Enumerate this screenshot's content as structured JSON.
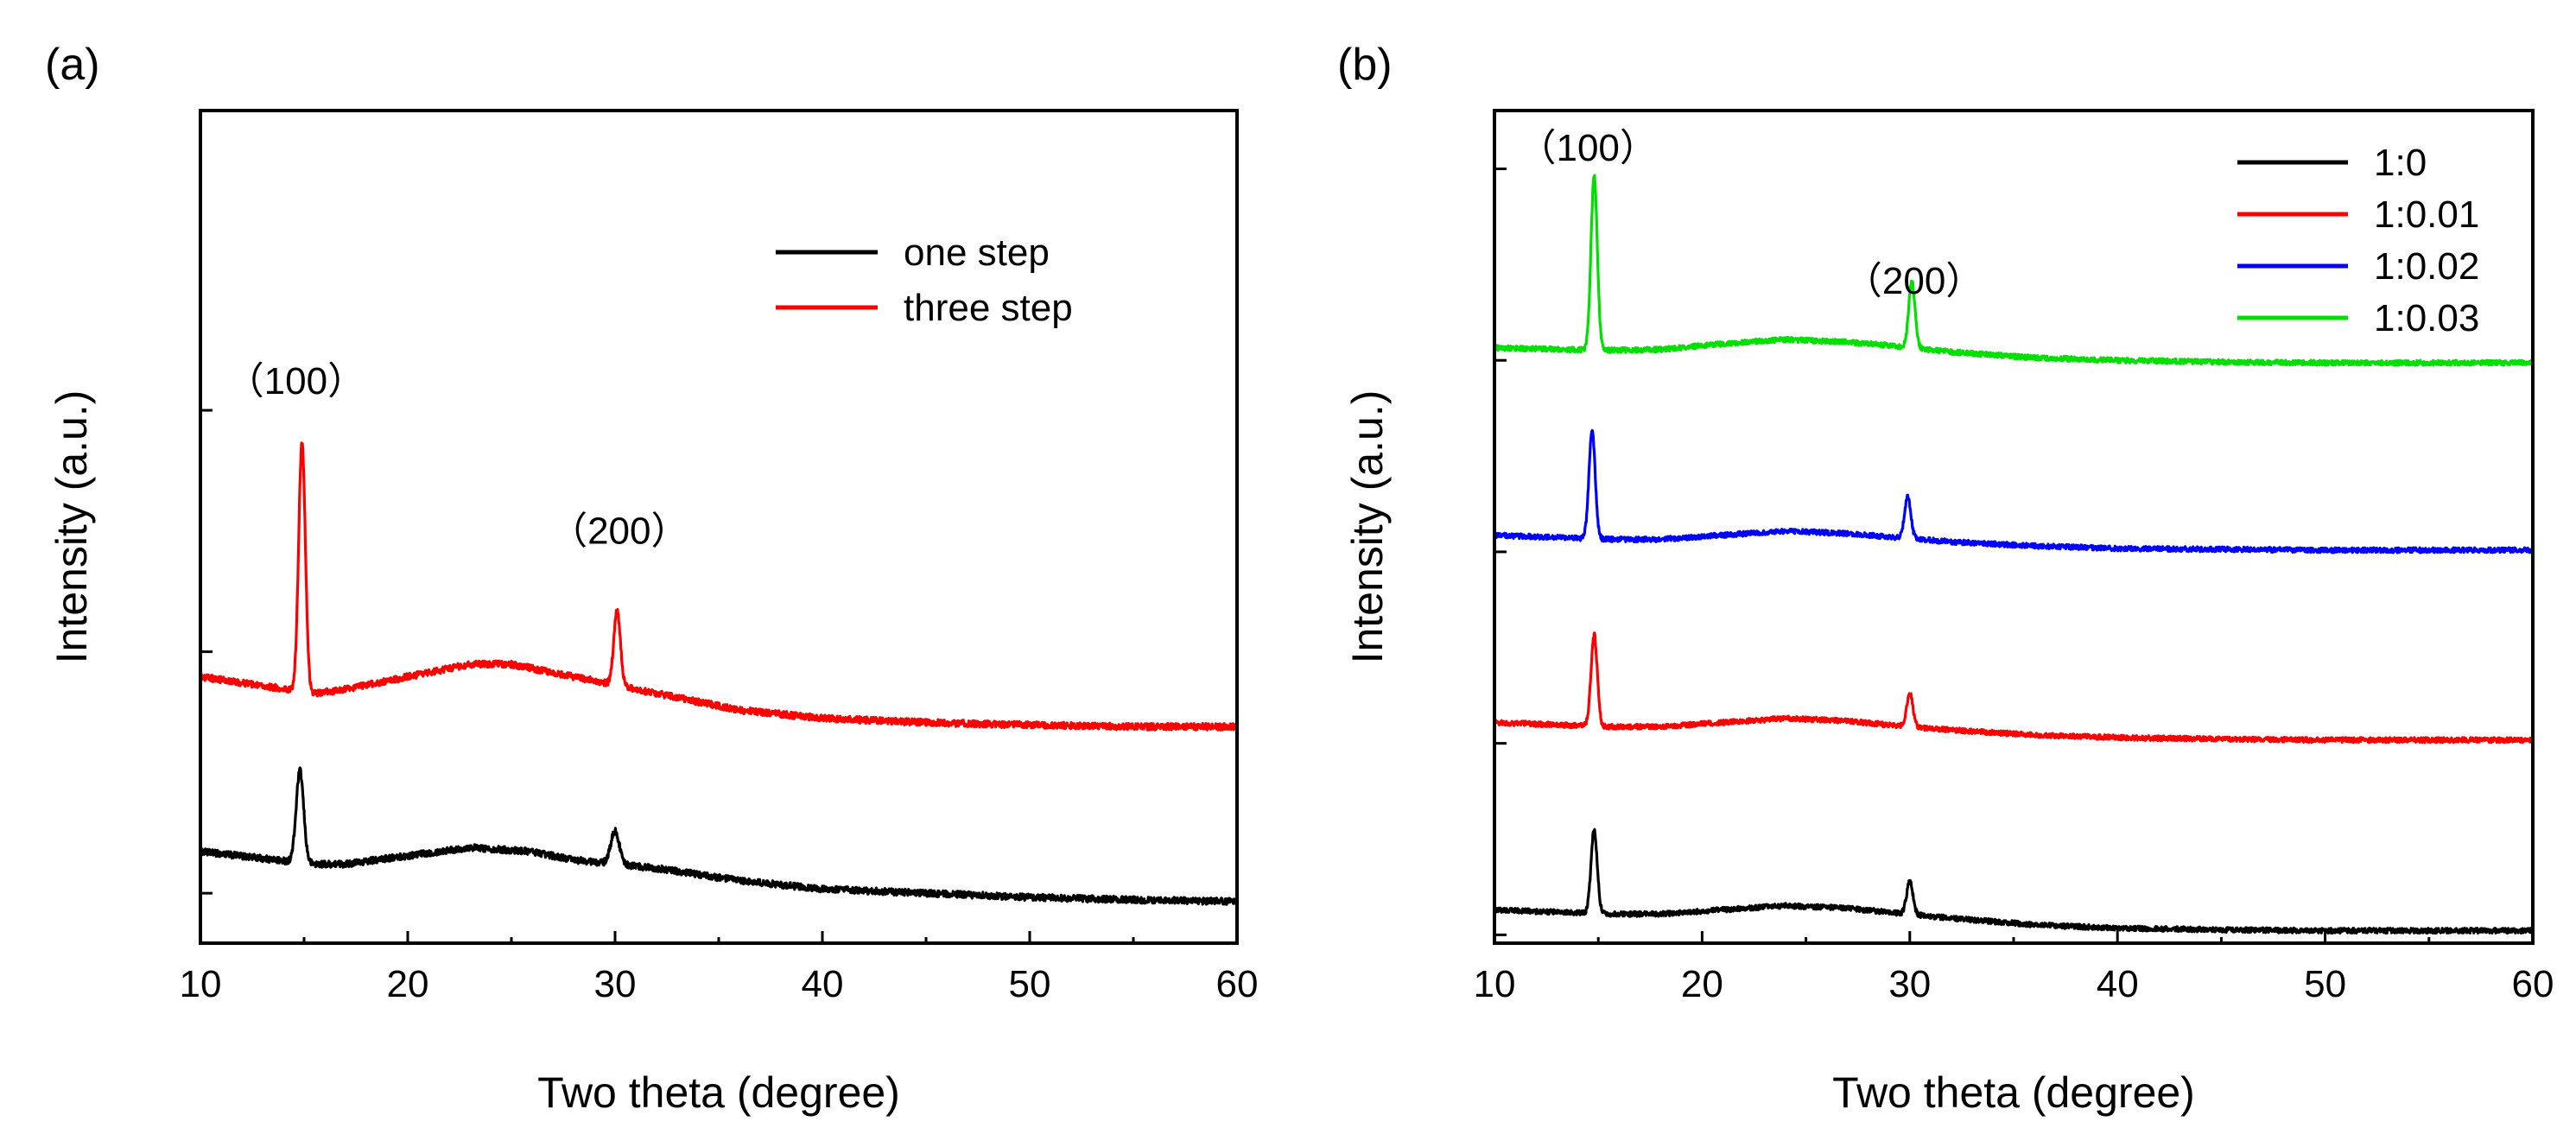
{
  "chart_data": [
    {
      "panel": "(a)",
      "type": "line",
      "xlabel": "Two theta (degree)",
      "ylabel": "Intensity (a.u.)",
      "xlim": [
        10,
        60
      ],
      "ylim": [
        0,
        1.0
      ],
      "xticks": [
        10,
        20,
        30,
        40,
        50,
        60
      ],
      "yticks": [
        0.06,
        0.35,
        0.64
      ],
      "grid": false,
      "legend": {
        "placement": "top-right",
        "entries": [
          "one step",
          "three step"
        ]
      },
      "annotations": [
        {
          "text": "（100）",
          "x": 14.6,
          "y": 0.66
        },
        {
          "text": "（200）",
          "x": 30.2,
          "y": 0.48
        }
      ],
      "series": [
        {
          "name": "one step",
          "color": "#000000",
          "noise": 0.004,
          "baseline": {
            "x": [
              10,
              15.5,
              17,
              20,
              23,
              26,
              28,
              32,
              36,
              40,
              45,
              50,
              55,
              60
            ],
            "y": [
              0.11,
              0.095,
              0.095,
              0.105,
              0.115,
              0.11,
              0.1,
              0.09,
              0.075,
              0.065,
              0.06,
              0.055,
              0.052,
              0.05
            ]
          },
          "peaks": [
            {
              "x": 14.8,
              "h": 0.11,
              "w": 0.18
            },
            {
              "x": 30.0,
              "h": 0.04,
              "w": 0.2
            }
          ]
        },
        {
          "name": "three step",
          "color": "#ff0000",
          "noise": 0.004,
          "baseline": {
            "x": [
              10,
              15.5,
              17,
              20,
              23,
              25,
              27,
              29,
              32,
              36,
              40,
              45,
              50,
              55,
              60
            ],
            "y": [
              0.32,
              0.3,
              0.305,
              0.32,
              0.335,
              0.335,
              0.325,
              0.315,
              0.3,
              0.28,
              0.27,
              0.265,
              0.262,
              0.26,
              0.26
            ]
          },
          "peaks": [
            {
              "x": 14.9,
              "h": 0.3,
              "w": 0.16
            },
            {
              "x": 30.1,
              "h": 0.09,
              "w": 0.16
            }
          ]
        }
      ]
    },
    {
      "panel": "(b)",
      "type": "line",
      "xlabel": "Two theta (degree)",
      "ylabel": "Intensity (a.u.)",
      "xlim": [
        10,
        60
      ],
      "ylim": [
        0,
        1.0
      ],
      "xticks": [
        10,
        20,
        30,
        40,
        50,
        60
      ],
      "yticks": [
        0.01,
        0.24,
        0.47,
        0.7,
        0.93
      ],
      "grid": false,
      "legend": {
        "placement": "top-right",
        "entries": [
          "1:0",
          "1:0.01",
          "1:0.02",
          "1:0.03"
        ]
      },
      "annotations": [
        {
          "text": "（100）",
          "x": 14.5,
          "y": 0.94
        },
        {
          "text": "（200）",
          "x": 30.2,
          "y": 0.78
        }
      ],
      "series": [
        {
          "name": "1:0",
          "color": "#000000",
          "noise": 0.003,
          "baseline": {
            "x": [
              10,
              15.5,
              18,
              21,
              24,
              27,
              29,
              32,
              36,
              40,
              45,
              50,
              55,
              60
            ],
            "y": [
              0.04,
              0.035,
              0.035,
              0.04,
              0.045,
              0.042,
              0.037,
              0.03,
              0.022,
              0.018,
              0.016,
              0.015,
              0.015,
              0.015
            ]
          },
          "peaks": [
            {
              "x": 14.8,
              "h": 0.1,
              "w": 0.15
            },
            {
              "x": 30.0,
              "h": 0.04,
              "w": 0.15
            }
          ]
        },
        {
          "name": "1:0.01",
          "color": "#ff0000",
          "noise": 0.003,
          "baseline": {
            "x": [
              10,
              15.5,
              18,
              21,
              24,
              27,
              29,
              32,
              36,
              40,
              45,
              50,
              55,
              60
            ],
            "y": [
              0.265,
              0.26,
              0.26,
              0.265,
              0.27,
              0.267,
              0.262,
              0.256,
              0.25,
              0.247,
              0.245,
              0.244,
              0.244,
              0.244
            ]
          },
          "peaks": [
            {
              "x": 14.8,
              "h": 0.11,
              "w": 0.15
            },
            {
              "x": 30.0,
              "h": 0.04,
              "w": 0.15
            }
          ]
        },
        {
          "name": "1:0.02",
          "color": "#0000ff",
          "noise": 0.003,
          "baseline": {
            "x": [
              10,
              15.5,
              18,
              21,
              24,
              27,
              29,
              32,
              36,
              40,
              45,
              50,
              55,
              60
            ],
            "y": [
              0.49,
              0.485,
              0.485,
              0.49,
              0.495,
              0.492,
              0.488,
              0.482,
              0.477,
              0.474,
              0.473,
              0.472,
              0.472,
              0.472
            ]
          },
          "peaks": [
            {
              "x": 14.7,
              "h": 0.13,
              "w": 0.15
            },
            {
              "x": 29.9,
              "h": 0.05,
              "w": 0.15
            }
          ]
        },
        {
          "name": "1:0.03",
          "color": "#00e000",
          "noise": 0.003,
          "baseline": {
            "x": [
              10,
              15.5,
              18,
              21,
              24,
              27,
              29,
              32,
              36,
              40,
              45,
              50,
              55,
              60
            ],
            "y": [
              0.715,
              0.712,
              0.713,
              0.72,
              0.725,
              0.722,
              0.718,
              0.71,
              0.703,
              0.7,
              0.698,
              0.697,
              0.697,
              0.697
            ]
          },
          "peaks": [
            {
              "x": 14.8,
              "h": 0.21,
              "w": 0.15
            },
            {
              "x": 30.1,
              "h": 0.08,
              "w": 0.15
            }
          ]
        }
      ]
    }
  ]
}
